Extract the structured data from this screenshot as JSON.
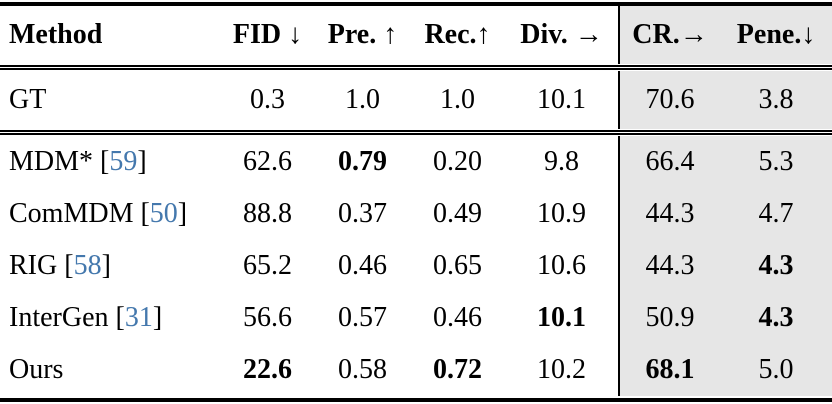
{
  "table": {
    "columns": [
      {
        "id": "method",
        "label": "Method"
      },
      {
        "id": "fid",
        "label": "FID ↓"
      },
      {
        "id": "pre",
        "label": "Pre. ↑"
      },
      {
        "id": "rec",
        "label": "Rec.↑"
      },
      {
        "id": "div",
        "label": "Div. →"
      },
      {
        "id": "cr",
        "label": "CR.→",
        "highlight": true
      },
      {
        "id": "pene",
        "label": "Pene.↓",
        "highlight": true
      }
    ],
    "colors": {
      "highlight_bg": "#e6e6e6",
      "citation_blue": "#4478ad",
      "rule_black": "#000000"
    },
    "sections": [
      {
        "rows": [
          {
            "method": {
              "name": "GT",
              "cite": null
            },
            "values": [
              {
                "v": "0.3"
              },
              {
                "v": "1.0"
              },
              {
                "v": "1.0"
              },
              {
                "v": "10.1"
              },
              {
                "v": "70.6"
              },
              {
                "v": "3.8"
              }
            ]
          }
        ]
      },
      {
        "rows": [
          {
            "method": {
              "name": "MDM*",
              "cite": "59"
            },
            "values": [
              {
                "v": "62.6"
              },
              {
                "v": "0.79",
                "bold": true
              },
              {
                "v": "0.20"
              },
              {
                "v": "9.8"
              },
              {
                "v": "66.4"
              },
              {
                "v": "5.3"
              }
            ]
          },
          {
            "method": {
              "name": "ComMDM",
              "cite": "50"
            },
            "values": [
              {
                "v": "88.8"
              },
              {
                "v": "0.37"
              },
              {
                "v": "0.49"
              },
              {
                "v": "10.9"
              },
              {
                "v": "44.3"
              },
              {
                "v": "4.7"
              }
            ]
          },
          {
            "method": {
              "name": "RIG",
              "cite": "58"
            },
            "values": [
              {
                "v": "65.2"
              },
              {
                "v": "0.46"
              },
              {
                "v": "0.65"
              },
              {
                "v": "10.6"
              },
              {
                "v": "44.3"
              },
              {
                "v": "4.3",
                "bold": true
              }
            ]
          },
          {
            "method": {
              "name": "InterGen",
              "cite": "31"
            },
            "values": [
              {
                "v": "56.6"
              },
              {
                "v": "0.57"
              },
              {
                "v": "0.46"
              },
              {
                "v": "10.1",
                "bold": true
              },
              {
                "v": "50.9"
              },
              {
                "v": "4.3",
                "bold": true
              }
            ]
          },
          {
            "method": {
              "name": "Ours",
              "cite": null
            },
            "values": [
              {
                "v": "22.6",
                "bold": true
              },
              {
                "v": "0.58"
              },
              {
                "v": "0.72",
                "bold": true
              },
              {
                "v": "10.2"
              },
              {
                "v": "68.1",
                "bold": true
              },
              {
                "v": "5.0"
              }
            ]
          }
        ]
      }
    ]
  }
}
